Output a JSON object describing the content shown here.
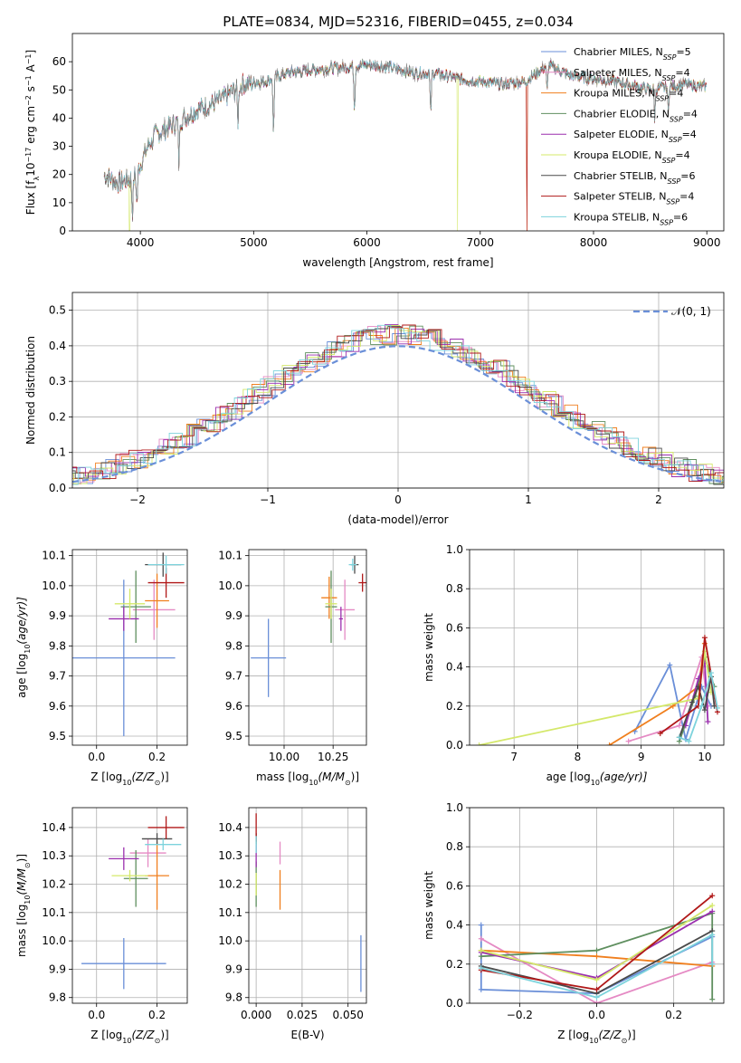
{
  "figure": {
    "title": "PLATE=0834, MJD=52316, FIBERID=0455, z=0.034"
  },
  "colors": {
    "chabrier_miles": "#6a8fd8",
    "salpeter_miles": "#e58ac4",
    "kroupa_miles": "#f07f1e",
    "chabrier_elodie": "#5f8f5f",
    "salpeter_elodie": "#9b2fae",
    "kroupa_elodie": "#d4e86a",
    "chabrier_stelib": "#4a4a4a",
    "salpeter_stelib": "#b01818",
    "kroupa_stelib": "#7dd3dc",
    "grid": "#b0b0b0"
  },
  "chart_data": [
    {
      "type": "line",
      "title": "PLATE=0834, MJD=52316, FIBERID=0455, z=0.034",
      "xlabel": "wavelength [Angstrom, rest frame]",
      "ylabel_parts": [
        "Flux [f",
        "λ",
        "10",
        "−17",
        " erg cm",
        "−2",
        " s",
        "−1",
        " A",
        "−1",
        "]"
      ],
      "xlim": [
        3400,
        9150
      ],
      "ylim": [
        0,
        70
      ],
      "xticks": [
        4000,
        5000,
        6000,
        7000,
        8000,
        9000
      ],
      "yticks": [
        0,
        10,
        20,
        30,
        40,
        50,
        60
      ],
      "grid": false,
      "legend_position": "top-right",
      "legend": [
        {
          "label": "Chabrier MILES, N",
          "sub": "SSP",
          "tail": "=5",
          "color_key": "chabrier_miles"
        },
        {
          "label": "Salpeter MILES, N",
          "sub": "SSP",
          "tail": "=4",
          "color_key": "salpeter_miles"
        },
        {
          "label": "Kroupa MILES, N",
          "sub": "SSP",
          "tail": "=4",
          "color_key": "kroupa_miles"
        },
        {
          "label": "Chabrier ELODIE, N",
          "sub": "SSP",
          "tail": "=4",
          "color_key": "chabrier_elodie"
        },
        {
          "label": "Salpeter ELODIE, N",
          "sub": "SSP",
          "tail": "=4",
          "color_key": "salpeter_elodie"
        },
        {
          "label": "Kroupa ELODIE, N",
          "sub": "SSP",
          "tail": "=4",
          "color_key": "kroupa_elodie"
        },
        {
          "label": "Chabrier STELIB, N",
          "sub": "SSP",
          "tail": "=6",
          "color_key": "chabrier_stelib"
        },
        {
          "label": "Salpeter STELIB, N",
          "sub": "SSP",
          "tail": "=4",
          "color_key": "salpeter_stelib"
        },
        {
          "label": "Kroupa STELIB, N",
          "sub": "SSP",
          "tail": "=6",
          "color_key": "kroupa_stelib"
        }
      ],
      "continuum": [
        [
          3680,
          20
        ],
        [
          3800,
          17
        ],
        [
          3950,
          19
        ],
        [
          4100,
          33
        ],
        [
          4300,
          38
        ],
        [
          4500,
          43
        ],
        [
          4700,
          46
        ],
        [
          4900,
          52
        ],
        [
          5100,
          53
        ],
        [
          5300,
          56
        ],
        [
          5500,
          57
        ],
        [
          5800,
          58
        ],
        [
          6000,
          59
        ],
        [
          6200,
          58
        ],
        [
          6400,
          56
        ],
        [
          6600,
          56
        ],
        [
          6800,
          54
        ],
        [
          7000,
          53
        ],
        [
          7200,
          52
        ],
        [
          7400,
          53
        ],
        [
          7600,
          59
        ],
        [
          7800,
          55
        ],
        [
          8000,
          54
        ],
        [
          8200,
          53
        ],
        [
          8500,
          50
        ],
        [
          8800,
          52
        ],
        [
          9000,
          51
        ]
      ],
      "dips": [
        [
          3930,
          5
        ],
        [
          3970,
          8
        ],
        [
          4101,
          31
        ],
        [
          4340,
          24
        ],
        [
          4861,
          38
        ],
        [
          5175,
          34
        ],
        [
          5890,
          42
        ],
        [
          6563,
          40
        ],
        [
          7590,
          48
        ],
        [
          8540,
          40
        ],
        [
          8660,
          42
        ]
      ],
      "model_dropouts": [
        {
          "color_key": "kroupa_elodie",
          "x": 6800
        },
        {
          "color_key": "salpeter_stelib",
          "x": 7410
        },
        {
          "color_key": "kroupa_miles",
          "x": 7410
        },
        {
          "color_key": "kroupa_elodie",
          "x": 3905
        }
      ]
    },
    {
      "type": "line",
      "xlabel": "(data-model)/error",
      "ylabel": "Normed distribution",
      "xlim": [
        -2.5,
        2.5
      ],
      "ylim": [
        0,
        0.55
      ],
      "xticks": [
        -2,
        -1,
        0,
        1,
        2
      ],
      "xtick_labels": [
        "−2",
        "−1",
        "0",
        "1",
        "2"
      ],
      "yticks": [
        0.0,
        0.1,
        0.2,
        0.3,
        0.4,
        0.5
      ],
      "ytick_labels": [
        "0.0",
        "0.1",
        "0.2",
        "0.3",
        "0.4",
        "0.5"
      ],
      "grid": true,
      "legend_position": "top-right",
      "legend_label": "𝒩(0, 1)",
      "gaussian": {
        "mean": 0,
        "sigma": 1
      },
      "bin_width": 0.1
    },
    {
      "type": "scatter",
      "xlabel": "Z [log10(Z/Z⊙)]",
      "xlabel_parts": [
        "Z [log",
        "10",
        "(Z/Z",
        "⊙",
        ")]"
      ],
      "ylabel_parts": [
        "age  [log",
        "10",
        "(age/yr)]"
      ],
      "xlim": [
        -0.08,
        0.3
      ],
      "ylim": [
        9.47,
        10.12
      ],
      "xticks": [
        0.0,
        0.2
      ],
      "xtick_labels": [
        "0.0",
        "0.2"
      ],
      "yticks": [
        9.5,
        9.6,
        9.7,
        9.8,
        9.9,
        10.0,
        10.1
      ],
      "ytick_labels": [
        "9.5",
        "9.6",
        "9.7",
        "9.8",
        "9.9",
        "10.0",
        "10.1"
      ],
      "grid": true,
      "points": [
        {
          "color_key": "chabrier_miles",
          "x": 0.09,
          "y": 9.76,
          "ex": 0.17,
          "ey": 0.26
        },
        {
          "color_key": "salpeter_miles",
          "x": 0.19,
          "y": 9.92,
          "ex": 0.07,
          "ey": 0.1
        },
        {
          "color_key": "kroupa_miles",
          "x": 0.2,
          "y": 9.95,
          "ex": 0.04,
          "ey": 0.09
        },
        {
          "color_key": "chabrier_elodie",
          "x": 0.13,
          "y": 9.93,
          "ex": 0.05,
          "ey": 0.12
        },
        {
          "color_key": "salpeter_elodie",
          "x": 0.09,
          "y": 9.89,
          "ex": 0.05,
          "ey": 0.04
        },
        {
          "color_key": "kroupa_elodie",
          "x": 0.11,
          "y": 9.94,
          "ex": 0.05,
          "ey": 0.05
        },
        {
          "color_key": "chabrier_stelib",
          "x": 0.22,
          "y": 10.07,
          "ex": 0.06,
          "ey": 0.04
        },
        {
          "color_key": "salpeter_stelib",
          "x": 0.23,
          "y": 10.01,
          "ex": 0.06,
          "ey": 0.05
        },
        {
          "color_key": "kroupa_stelib",
          "x": 0.23,
          "y": 10.07,
          "ex": 0.06,
          "ey": 0.03
        }
      ]
    },
    {
      "type": "scatter",
      "xlabel_parts": [
        "mass [log",
        "10",
        "(M/M",
        "⊙",
        ")]"
      ],
      "xlim": [
        9.82,
        10.42
      ],
      "ylim": [
        9.47,
        10.12
      ],
      "xticks": [
        10.0,
        10.25
      ],
      "xtick_labels": [
        "10.00",
        "10.25"
      ],
      "yticks": [
        9.5,
        9.6,
        9.7,
        9.8,
        9.9,
        10.0,
        10.1
      ],
      "ytick_labels": [
        "9.5",
        "9.6",
        "9.7",
        "9.8",
        "9.9",
        "10.0",
        "10.1"
      ],
      "grid": true,
      "points": [
        {
          "color_key": "chabrier_miles",
          "x": 9.92,
          "y": 9.76,
          "ex": 0.09,
          "ey": 0.13
        },
        {
          "color_key": "salpeter_miles",
          "x": 10.31,
          "y": 9.92,
          "ex": 0.05,
          "ey": 0.1
        },
        {
          "color_key": "kroupa_miles",
          "x": 10.23,
          "y": 9.96,
          "ex": 0.04,
          "ey": 0.07
        },
        {
          "color_key": "chabrier_elodie",
          "x": 10.24,
          "y": 9.93,
          "ex": 0.03,
          "ey": 0.12
        },
        {
          "color_key": "salpeter_elodie",
          "x": 10.29,
          "y": 9.89,
          "ex": 0.01,
          "ey": 0.04
        },
        {
          "color_key": "kroupa_elodie",
          "x": 10.24,
          "y": 9.94,
          "ex": 0.03,
          "ey": 0.05
        },
        {
          "color_key": "chabrier_stelib",
          "x": 10.36,
          "y": 10.07,
          "ex": 0.02,
          "ey": 0.03
        },
        {
          "color_key": "salpeter_stelib",
          "x": 10.4,
          "y": 10.01,
          "ex": 0.02,
          "ey": 0.03
        },
        {
          "color_key": "kroupa_stelib",
          "x": 10.35,
          "y": 10.07,
          "ex": 0.02,
          "ey": 0.02
        }
      ]
    },
    {
      "type": "line",
      "xlabel_parts": [
        "age  [log",
        "10",
        "(age/yr)]"
      ],
      "ylabel": "mass weight",
      "xlim": [
        6.3,
        10.3
      ],
      "ylim": [
        0,
        1
      ],
      "xticks": [
        7,
        8,
        9,
        10
      ],
      "xtick_labels": [
        "7",
        "8",
        "9",
        "10"
      ],
      "yticks": [
        0.0,
        0.2,
        0.4,
        0.6,
        0.8,
        1.0
      ],
      "ytick_labels": [
        "0.0",
        "0.2",
        "0.4",
        "0.6",
        "0.8",
        "1.0"
      ],
      "grid": true,
      "series": [
        {
          "color_key": "chabrier_miles",
          "x": [
            8.9,
            9.45,
            9.7,
            9.95,
            10.1
          ],
          "y": [
            0.07,
            0.41,
            0.03,
            0.3,
            0.2
          ]
        },
        {
          "color_key": "salpeter_miles",
          "x": [
            8.8,
            9.6,
            9.95,
            10.05
          ],
          "y": [
            0.02,
            0.1,
            0.45,
            0.2
          ]
        },
        {
          "color_key": "kroupa_miles",
          "x": [
            8.5,
            9.5,
            9.9,
            10.0
          ],
          "y": [
            0.0,
            0.2,
            0.3,
            0.52
          ]
        },
        {
          "color_key": "chabrier_elodie",
          "x": [
            9.6,
            9.85,
            10.0,
            10.15
          ],
          "y": [
            0.02,
            0.25,
            0.45,
            0.3
          ]
        },
        {
          "color_key": "salpeter_elodie",
          "x": [
            9.7,
            9.9,
            10.0,
            10.05
          ],
          "y": [
            0.1,
            0.34,
            0.42,
            0.12
          ]
        },
        {
          "color_key": "kroupa_elodie",
          "x": [
            6.45,
            9.9,
            10.0,
            10.1
          ],
          "y": [
            0.0,
            0.24,
            0.48,
            0.27
          ]
        },
        {
          "color_key": "chabrier_stelib",
          "x": [
            9.6,
            9.8,
            9.9,
            10.0,
            10.1,
            10.15
          ],
          "y": [
            0.04,
            0.22,
            0.3,
            0.18,
            0.35,
            0.2
          ]
        },
        {
          "color_key": "salpeter_stelib",
          "x": [
            9.3,
            9.9,
            10.0,
            10.2
          ],
          "y": [
            0.06,
            0.2,
            0.55,
            0.17
          ]
        },
        {
          "color_key": "kroupa_stelib",
          "x": [
            9.6,
            9.75,
            9.95,
            10.1,
            10.2
          ],
          "y": [
            0.04,
            0.02,
            0.2,
            0.37,
            0.19
          ]
        }
      ]
    },
    {
      "type": "scatter",
      "xlabel_parts": [
        "Z [log",
        "10",
        "(Z/Z",
        "⊙",
        ")]"
      ],
      "ylabel_parts": [
        "mass [log",
        "10",
        "(M/M",
        "⊙",
        ")]"
      ],
      "xlim": [
        -0.08,
        0.3
      ],
      "ylim": [
        9.78,
        10.47
      ],
      "xticks": [
        0.0,
        0.2
      ],
      "xtick_labels": [
        "0.0",
        "0.2"
      ],
      "yticks": [
        9.8,
        9.9,
        10.0,
        10.1,
        10.2,
        10.3,
        10.4
      ],
      "ytick_labels": [
        "9.8",
        "9.9",
        "10.0",
        "10.1",
        "10.2",
        "10.3",
        "10.4"
      ],
      "grid": true,
      "points": [
        {
          "color_key": "chabrier_miles",
          "x": 0.09,
          "y": 9.92,
          "ex": 0.14,
          "ey": 0.09
        },
        {
          "color_key": "salpeter_miles",
          "x": 0.17,
          "y": 10.31,
          "ex": 0.06,
          "ey": 0.05
        },
        {
          "color_key": "kroupa_miles",
          "x": 0.2,
          "y": 10.23,
          "ex": 0.04,
          "ey": 0.12
        },
        {
          "color_key": "chabrier_elodie",
          "x": 0.13,
          "y": 10.22,
          "ex": 0.04,
          "ey": 0.1
        },
        {
          "color_key": "salpeter_elodie",
          "x": 0.09,
          "y": 10.29,
          "ex": 0.05,
          "ey": 0.04
        },
        {
          "color_key": "kroupa_elodie",
          "x": 0.11,
          "y": 10.23,
          "ex": 0.06,
          "ey": 0.02
        },
        {
          "color_key": "chabrier_stelib",
          "x": 0.2,
          "y": 10.36,
          "ex": 0.05,
          "ey": 0.02
        },
        {
          "color_key": "salpeter_stelib",
          "x": 0.23,
          "y": 10.4,
          "ex": 0.06,
          "ey": 0.04
        },
        {
          "color_key": "kroupa_stelib",
          "x": 0.22,
          "y": 10.34,
          "ex": 0.06,
          "ey": 0.02
        }
      ]
    },
    {
      "type": "scatter",
      "xlabel": "E(B-V)",
      "xlim": [
        -0.004,
        0.06
      ],
      "ylim": [
        9.78,
        10.47
      ],
      "xticks": [
        0.0,
        0.025,
        0.05
      ],
      "xtick_labels": [
        "0.000",
        "0.025",
        "0.050"
      ],
      "yticks": [
        9.8,
        9.9,
        10.0,
        10.1,
        10.2,
        10.3,
        10.4
      ],
      "ytick_labels": [
        "9.8",
        "9.9",
        "10.0",
        "10.1",
        "10.2",
        "10.3",
        "10.4"
      ],
      "grid": true,
      "points": [
        {
          "color_key": "chabrier_miles",
          "x": 0.057,
          "y": 9.92,
          "ex": 0.0,
          "ey": 0.1
        },
        {
          "color_key": "salpeter_miles",
          "x": 0.013,
          "y": 10.31,
          "ex": 0.0,
          "ey": 0.04
        },
        {
          "color_key": "kroupa_miles",
          "x": 0.013,
          "y": 10.18,
          "ex": 0.0,
          "ey": 0.07
        },
        {
          "color_key": "chabrier_elodie",
          "x": 0.0,
          "y": 10.2,
          "ex": 0.0,
          "ey": 0.08
        },
        {
          "color_key": "salpeter_elodie",
          "x": 0.0,
          "y": 10.3,
          "ex": 0.0,
          "ey": 0.04
        },
        {
          "color_key": "kroupa_elodie",
          "x": 0.0,
          "y": 10.2,
          "ex": 0.0,
          "ey": 0.04
        },
        {
          "color_key": "chabrier_stelib",
          "x": 0.0,
          "y": 10.36,
          "ex": 0.0,
          "ey": 0.02
        },
        {
          "color_key": "salpeter_stelib",
          "x": 0.0,
          "y": 10.4,
          "ex": 0.0,
          "ey": 0.05
        },
        {
          "color_key": "kroupa_stelib",
          "x": 0.0,
          "y": 10.34,
          "ex": 0.0,
          "ey": 0.03
        }
      ]
    },
    {
      "type": "line",
      "xlabel_parts": [
        "Z [log",
        "10",
        "(Z/Z",
        "⊙",
        ")]"
      ],
      "ylabel": "mass weight",
      "xlim": [
        -0.33,
        0.33
      ],
      "ylim": [
        0,
        1
      ],
      "xticks": [
        -0.2,
        0.0,
        0.2
      ],
      "xtick_labels": [
        "−0.2",
        "0.0",
        "0.2"
      ],
      "yticks": [
        0.0,
        0.2,
        0.4,
        0.6,
        0.8,
        1.0
      ],
      "ytick_labels": [
        "0.0",
        "0.2",
        "0.4",
        "0.6",
        "0.8",
        "1.0"
      ],
      "grid": true,
      "series": [
        {
          "color_key": "chabrier_miles",
          "x": [
            -0.3,
            -0.3,
            0.0,
            0.3,
            0.3
          ],
          "y": [
            0.4,
            0.07,
            0.05,
            0.34,
            0.2
          ]
        },
        {
          "color_key": "salpeter_miles",
          "x": [
            -0.3,
            0.0,
            0.3
          ],
          "y": [
            0.33,
            0.0,
            0.21
          ]
        },
        {
          "color_key": "kroupa_miles",
          "x": [
            -0.3,
            0.0,
            0.3
          ],
          "y": [
            0.27,
            0.24,
            0.19
          ]
        },
        {
          "color_key": "chabrier_elodie",
          "x": [
            -0.3,
            0.0,
            0.3,
            0.3
          ],
          "y": [
            0.24,
            0.27,
            0.46,
            0.02
          ]
        },
        {
          "color_key": "salpeter_elodie",
          "x": [
            -0.3,
            0.0,
            0.3
          ],
          "y": [
            0.26,
            0.13,
            0.47
          ]
        },
        {
          "color_key": "kroupa_elodie",
          "x": [
            -0.3,
            0.0,
            0.3
          ],
          "y": [
            0.27,
            0.12,
            0.5
          ]
        },
        {
          "color_key": "chabrier_stelib",
          "x": [
            -0.3,
            0.0,
            0.3
          ],
          "y": [
            0.19,
            0.05,
            0.37
          ]
        },
        {
          "color_key": "salpeter_stelib",
          "x": [
            -0.3,
            0.0,
            0.3
          ],
          "y": [
            0.17,
            0.07,
            0.55
          ]
        },
        {
          "color_key": "kroupa_stelib",
          "x": [
            -0.3,
            0.0,
            0.3,
            0.3
          ],
          "y": [
            0.18,
            0.03,
            0.35,
            0.2
          ]
        }
      ]
    }
  ]
}
